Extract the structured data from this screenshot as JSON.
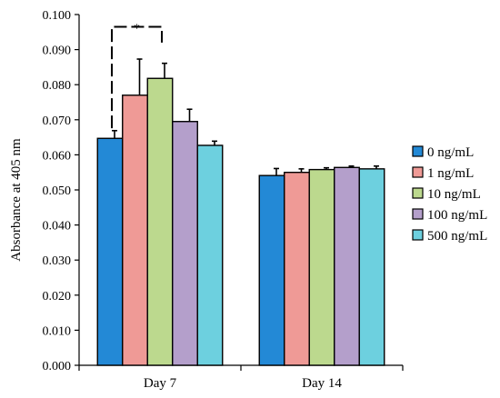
{
  "chart_data": {
    "type": "bar",
    "categories": [
      "Day 7",
      "Day 14"
    ],
    "series": [
      {
        "name": "0 ng/mL",
        "color": "#2389d6",
        "values": [
          0.0647,
          0.0541
        ],
        "errors": [
          0.0022,
          0.002
        ]
      },
      {
        "name": "1 ng/mL",
        "color": "#ef9a96",
        "values": [
          0.077,
          0.055
        ],
        "errors": [
          0.0103,
          0.001
        ]
      },
      {
        "name": "10 ng/mL",
        "color": "#bcd98e",
        "values": [
          0.0818,
          0.0558
        ],
        "errors": [
          0.0043,
          0.0005
        ]
      },
      {
        "name": "100 ng/mL",
        "color": "#b49fcb",
        "values": [
          0.0695,
          0.0564
        ],
        "errors": [
          0.0035,
          0.0004
        ]
      },
      {
        "name": "500 ng/mL",
        "color": "#6dd0df",
        "values": [
          0.0627,
          0.056
        ],
        "errors": [
          0.0012,
          0.0008
        ]
      }
    ],
    "title": "",
    "xlabel": "",
    "ylabel": "Absorbance at 405 nm",
    "ylim": [
      0,
      0.1
    ],
    "yticks": [
      "0.000",
      "0.010",
      "0.020",
      "0.030",
      "0.040",
      "0.050",
      "0.060",
      "0.070",
      "0.080",
      "0.090",
      "0.100"
    ],
    "grid": false,
    "legend": "right",
    "annotations": [
      {
        "text": "*",
        "category": "Day 7",
        "from_series": 0,
        "to_series": 2,
        "y": 0.0965
      }
    ]
  }
}
